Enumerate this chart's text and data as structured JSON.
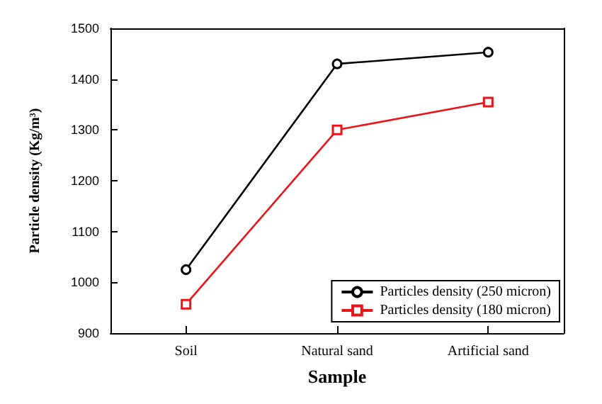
{
  "chart_data": {
    "type": "line",
    "xlabel": "Sample",
    "ylabel": "Particle density (Kg/m³)",
    "categories": [
      "Soil",
      "Natural sand",
      "Artificial sand"
    ],
    "series": [
      {
        "name": "Particles density (250 micron)",
        "color": "#000000",
        "marker": "circle",
        "values": [
          1025,
          1430,
          1453
        ]
      },
      {
        "name": "Particles density (180 micron)",
        "color": "#e8161b",
        "marker": "square",
        "values": [
          957,
          1300,
          1355
        ]
      }
    ],
    "ylim": [
      900,
      1500
    ],
    "yticks": [
      900,
      1000,
      1100,
      1200,
      1300,
      1400,
      1500
    ],
    "grid": false,
    "legend": "bottom right"
  }
}
